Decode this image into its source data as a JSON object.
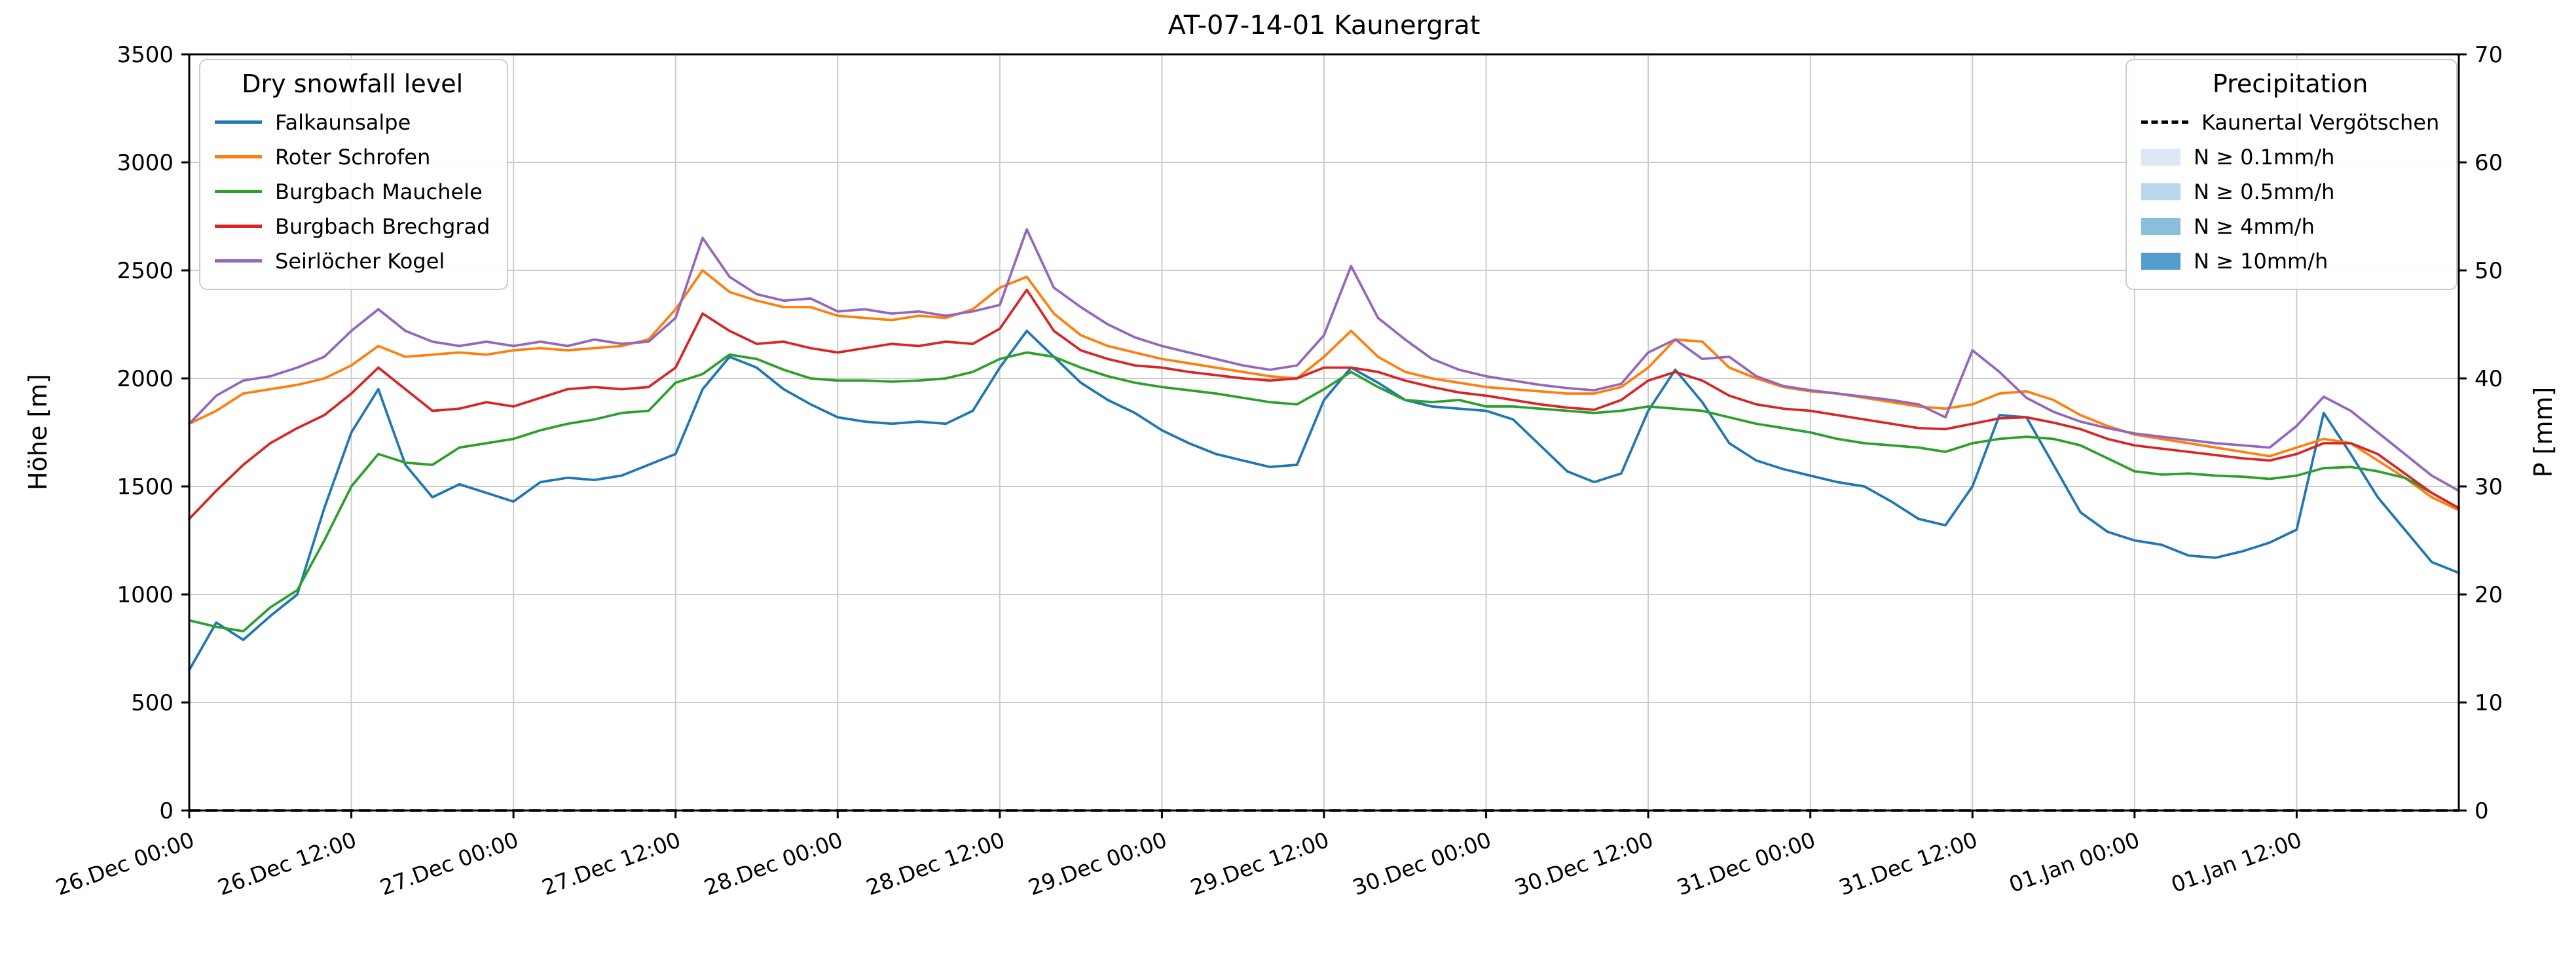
{
  "chart_data": {
    "type": "line",
    "title": "AT-07-14-01 Kaunergrat",
    "ylabel_left": "Höhe [m]",
    "ylabel_right": "P [mm]",
    "xlabel": "",
    "ylim_left": [
      0,
      3500
    ],
    "ylim_right": [
      0,
      70
    ],
    "yticks_left": [
      0,
      500,
      1000,
      1500,
      2000,
      2500,
      3000,
      3500
    ],
    "yticks_right": [
      0,
      10,
      20,
      30,
      40,
      50,
      60,
      70
    ],
    "grid": true,
    "x_start_hour": 0,
    "x_step_hours": 2,
    "x_total_hours": 168,
    "xtick_hours": [
      0,
      12,
      24,
      36,
      48,
      60,
      72,
      84,
      96,
      108,
      120,
      132,
      144,
      156
    ],
    "xtick_labels": [
      "26.Dec 00:00",
      "26.Dec 12:00",
      "27.Dec 00:00",
      "27.Dec 12:00",
      "28.Dec 00:00",
      "28.Dec 12:00",
      "29.Dec 00:00",
      "29.Dec 12:00",
      "30.Dec 00:00",
      "30.Dec 12:00",
      "31.Dec 00:00",
      "31.Dec 12:00",
      "01.Jan 00:00",
      "01.Jan 12:00"
    ],
    "legend_left": {
      "title": "Dry snowfall level",
      "entries": [
        {
          "label": "Falkaunsalpe",
          "color": "#1f77b4",
          "handle": "line"
        },
        {
          "label": "Roter Schrofen",
          "color": "#ff7f0e",
          "handle": "line"
        },
        {
          "label": "Burgbach Mauchele",
          "color": "#2ca02c",
          "handle": "line"
        },
        {
          "label": "Burgbach Brechgrad",
          "color": "#d62728",
          "handle": "line"
        },
        {
          "label": "Seirlöcher Kogel",
          "color": "#9467bd",
          "handle": "line"
        }
      ]
    },
    "legend_right": {
      "title": "Precipitation",
      "entries": [
        {
          "label": "Kaunertal Vergötschen",
          "color": "#000000",
          "handle": "dash"
        },
        {
          "label": "N ≥ 0.1mm/h",
          "color": "#dbe9f6",
          "handle": "patch"
        },
        {
          "label": "N ≥ 0.5mm/h",
          "color": "#bad6eb",
          "handle": "patch"
        },
        {
          "label": "N ≥ 4mm/h",
          "color": "#89bedc",
          "handle": "patch"
        },
        {
          "label": "N ≥ 10mm/h",
          "color": "#539ecd",
          "handle": "patch"
        }
      ]
    },
    "series": [
      {
        "name": "Falkaunsalpe",
        "color": "#1f77b4",
        "axis": "left",
        "values": [
          650,
          870,
          790,
          900,
          1000,
          1400,
          1750,
          1950,
          1600,
          1450,
          1510,
          1470,
          1430,
          1520,
          1540,
          1530,
          1550,
          1600,
          1650,
          1950,
          2100,
          2050,
          1950,
          1880,
          1820,
          1800,
          1790,
          1800,
          1790,
          1850,
          2050,
          2220,
          2100,
          1980,
          1900,
          1840,
          1760,
          1700,
          1650,
          1620,
          1590,
          1600,
          1900,
          2050,
          1980,
          1900,
          1870,
          1860,
          1850,
          1810,
          1690,
          1570,
          1520,
          1560,
          1850,
          2040,
          1890,
          1700,
          1620,
          1580,
          1550,
          1520,
          1500,
          1430,
          1350,
          1320,
          1500,
          1830,
          1820,
          1600,
          1380,
          1290,
          1250,
          1230,
          1180,
          1170,
          1200,
          1240,
          1300,
          1840,
          1650,
          1450,
          1300,
          1150,
          1100
        ]
      },
      {
        "name": "Roter Schrofen",
        "color": "#ff7f0e",
        "axis": "left",
        "values": [
          1790,
          1850,
          1930,
          1950,
          1970,
          2000,
          2060,
          2150,
          2100,
          2110,
          2120,
          2110,
          2130,
          2140,
          2130,
          2140,
          2150,
          2180,
          2320,
          2500,
          2400,
          2360,
          2330,
          2330,
          2290,
          2280,
          2270,
          2290,
          2280,
          2320,
          2420,
          2470,
          2300,
          2200,
          2150,
          2120,
          2090,
          2070,
          2050,
          2030,
          2010,
          2000,
          2100,
          2220,
          2100,
          2030,
          2000,
          1980,
          1960,
          1950,
          1940,
          1930,
          1930,
          1960,
          2050,
          2180,
          2170,
          2050,
          2000,
          1960,
          1940,
          1930,
          1910,
          1890,
          1870,
          1860,
          1880,
          1930,
          1940,
          1900,
          1830,
          1780,
          1740,
          1720,
          1700,
          1680,
          1660,
          1640,
          1680,
          1720,
          1700,
          1620,
          1540,
          1450,
          1390
        ]
      },
      {
        "name": "Burgbach Mauchele",
        "color": "#2ca02c",
        "axis": "left",
        "values": [
          880,
          850,
          830,
          940,
          1020,
          1250,
          1500,
          1650,
          1610,
          1600,
          1680,
          1700,
          1720,
          1760,
          1790,
          1810,
          1840,
          1850,
          1980,
          2020,
          2110,
          2090,
          2040,
          2000,
          1990,
          1990,
          1985,
          1990,
          2000,
          2030,
          2090,
          2120,
          2100,
          2050,
          2010,
          1980,
          1960,
          1945,
          1930,
          1910,
          1890,
          1880,
          1950,
          2030,
          1960,
          1900,
          1890,
          1900,
          1870,
          1870,
          1860,
          1850,
          1840,
          1850,
          1870,
          1860,
          1850,
          1820,
          1790,
          1770,
          1750,
          1720,
          1700,
          1690,
          1680,
          1660,
          1700,
          1720,
          1730,
          1720,
          1690,
          1630,
          1570,
          1555,
          1560,
          1550,
          1545,
          1535,
          1550,
          1585,
          1590,
          1570,
          1540,
          1470,
          1400
        ]
      },
      {
        "name": "Burgbach Brechgrad",
        "color": "#d62728",
        "axis": "left",
        "values": [
          1350,
          1480,
          1600,
          1700,
          1770,
          1830,
          1930,
          2050,
          1950,
          1850,
          1860,
          1890,
          1870,
          1910,
          1950,
          1960,
          1950,
          1960,
          2050,
          2300,
          2220,
          2160,
          2170,
          2140,
          2120,
          2140,
          2160,
          2150,
          2170,
          2160,
          2230,
          2410,
          2220,
          2130,
          2090,
          2060,
          2050,
          2030,
          2015,
          2000,
          1990,
          2000,
          2050,
          2050,
          2030,
          1990,
          1960,
          1935,
          1920,
          1900,
          1880,
          1865,
          1855,
          1900,
          1990,
          2030,
          1990,
          1920,
          1880,
          1860,
          1850,
          1830,
          1810,
          1790,
          1770,
          1765,
          1790,
          1815,
          1820,
          1795,
          1765,
          1720,
          1690,
          1675,
          1660,
          1645,
          1630,
          1620,
          1650,
          1700,
          1700,
          1650,
          1560,
          1470,
          1400
        ]
      },
      {
        "name": "Seirlöcher Kogel",
        "color": "#9467bd",
        "axis": "left",
        "values": [
          1790,
          1920,
          1990,
          2010,
          2050,
          2100,
          2220,
          2320,
          2220,
          2170,
          2150,
          2170,
          2150,
          2170,
          2150,
          2180,
          2160,
          2170,
          2280,
          2650,
          2470,
          2390,
          2360,
          2370,
          2310,
          2320,
          2300,
          2310,
          2290,
          2310,
          2340,
          2690,
          2420,
          2330,
          2250,
          2190,
          2150,
          2120,
          2090,
          2060,
          2040,
          2060,
          2200,
          2520,
          2280,
          2180,
          2090,
          2040,
          2010,
          1990,
          1970,
          1955,
          1945,
          1975,
          2120,
          2180,
          2090,
          2100,
          2010,
          1965,
          1945,
          1930,
          1915,
          1900,
          1880,
          1820,
          2130,
          2030,
          1910,
          1845,
          1800,
          1770,
          1745,
          1730,
          1715,
          1700,
          1690,
          1680,
          1780,
          1915,
          1850,
          1750,
          1650,
          1550,
          1480
        ]
      },
      {
        "name": "Kaunertal Vergötschen",
        "color": "#000000",
        "axis": "right",
        "dash": true,
        "x": [
          0,
          168
        ],
        "values": [
          0,
          0
        ]
      }
    ]
  }
}
